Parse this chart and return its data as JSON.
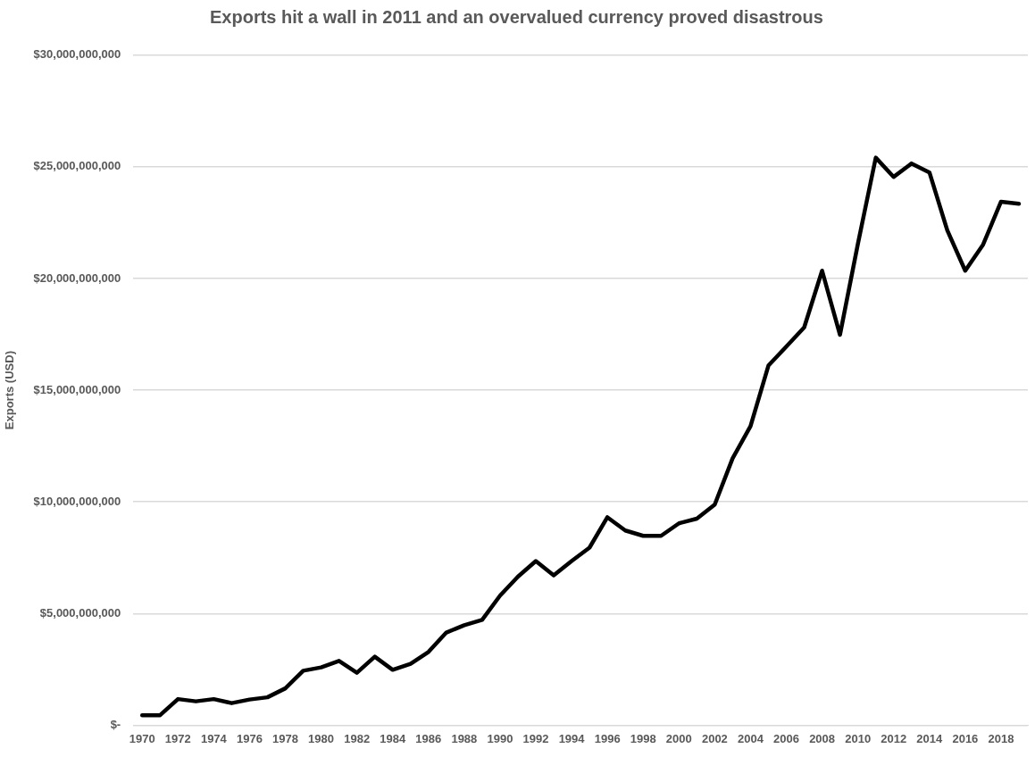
{
  "chart_data": {
    "type": "line",
    "title": "Exports hit a wall in 2011 and an overvalued currency proved disastrous",
    "ylabel": "Exports (USD)",
    "categories": [
      "1970",
      null,
      "1972",
      null,
      "1974",
      null,
      "1976",
      null,
      "1978",
      null,
      "1980",
      null,
      "1982",
      null,
      "1984",
      null,
      "1986",
      null,
      "1988",
      null,
      "1990",
      null,
      "1992",
      null,
      "1994",
      null,
      "1996",
      null,
      "1998",
      null,
      "2000",
      null,
      "2002",
      null,
      "2004",
      null,
      "2006",
      null,
      "2008",
      null,
      "2010",
      null,
      "2012",
      null,
      "2014",
      null,
      "2016",
      null,
      "2018",
      null
    ],
    "series": [
      {
        "color": "#000000",
        "values": [
          450000000,
          450000000,
          1170000000,
          1070000000,
          1170000000,
          990000000,
          1150000000,
          1250000000,
          1650000000,
          2440000000,
          2590000000,
          2880000000,
          2350000000,
          3070000000,
          2480000000,
          2750000000,
          3280000000,
          4150000000,
          4480000000,
          4720000000,
          5800000000,
          6650000000,
          7350000000,
          6710000000,
          7350000000,
          7950000000,
          9310000000,
          8720000000,
          8480000000,
          8480000000,
          9040000000,
          9250000000,
          9880000000,
          11950000000,
          13390000000,
          16100000000,
          16950000000,
          17810000000,
          20350000000,
          17480000000,
          21550000000,
          25410000000,
          24550000000,
          25150000000,
          24750000000,
          22150000000,
          20350000000,
          21520000000,
          23440000000,
          23350000000
        ]
      }
    ],
    "ylim": [
      0,
      30000000000
    ],
    "yticks": [
      {
        "value": 0,
        "label": "$-"
      },
      {
        "value": 5000000000,
        "label": "$5,000,000,000"
      },
      {
        "value": 10000000000,
        "label": "$10,000,000,000"
      },
      {
        "value": 15000000000,
        "label": "$15,000,000,000"
      },
      {
        "value": 20000000000,
        "label": "$20,000,000,000"
      },
      {
        "value": 25000000000,
        "label": "$25,000,000,000"
      },
      {
        "value": 30000000000,
        "label": "$30,000,000,000"
      }
    ],
    "grid": "y",
    "legend": false,
    "marker": "none",
    "line_style": "solid"
  }
}
